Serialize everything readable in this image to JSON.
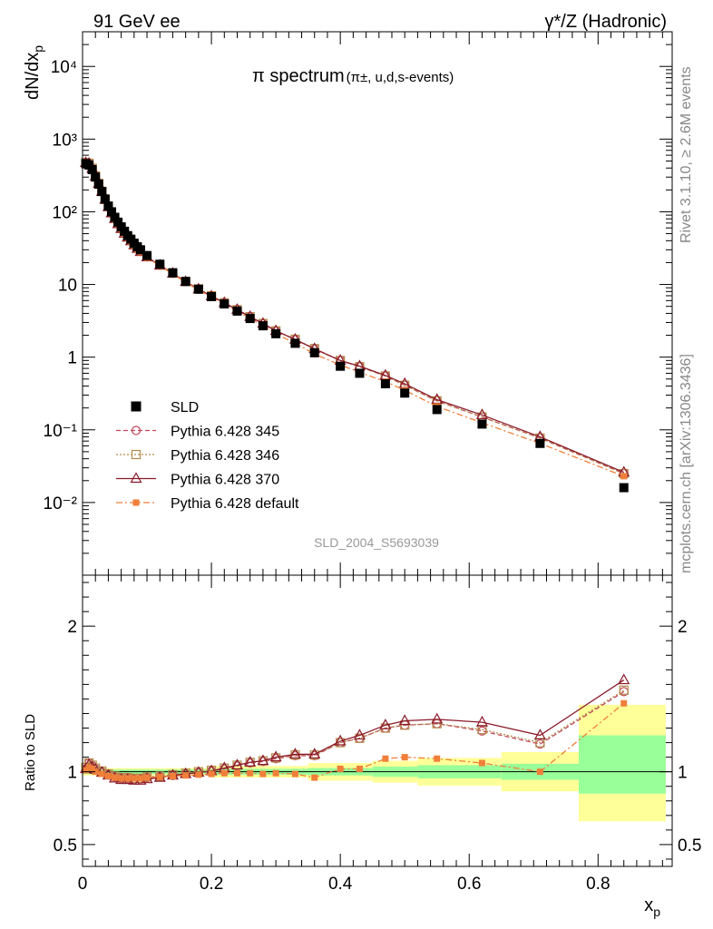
{
  "header": {
    "left": "91 GeV ee",
    "right": "γ*/Z (Hadronic)"
  },
  "side": {
    "rivet": "Rivet 3.1.10, ≥ 2.6M events",
    "mcplots": "mcplots.cern.ch [arXiv:1306.3436]"
  },
  "analysis_tag": "SLD_2004_S5693039",
  "chart_data": [
    {
      "type": "scatter",
      "title_main": "π spectrum",
      "title_sub": "(π±, u,d,s-events)",
      "xlabel": "",
      "ylabel": "dN/dx",
      "ylabel_sub": "p",
      "yscale": "log",
      "xlim": [
        0,
        0.915
      ],
      "ylim": [
        0.001,
        30000
      ],
      "x_ticks": [
        0,
        0.2,
        0.4,
        0.6,
        0.8
      ],
      "y_tick_labels": [
        "10⁻²",
        "10⁻¹",
        "1",
        "10",
        "10²",
        "10³",
        "10⁴"
      ],
      "y_tick_values": [
        0.01,
        0.1,
        1,
        10,
        100,
        1000,
        10000
      ],
      "legend_position": "bottom-left",
      "series": [
        {
          "name": "SLD",
          "color": "#000000",
          "marker": "square-filled",
          "x": [
            0.005,
            0.01,
            0.015,
            0.02,
            0.025,
            0.03,
            0.035,
            0.04,
            0.045,
            0.05,
            0.055,
            0.06,
            0.065,
            0.07,
            0.075,
            0.08,
            0.085,
            0.09,
            0.1,
            0.12,
            0.14,
            0.16,
            0.18,
            0.2,
            0.22,
            0.24,
            0.26,
            0.28,
            0.3,
            0.33,
            0.36,
            0.4,
            0.43,
            0.47,
            0.5,
            0.55,
            0.62,
            0.71,
            0.84
          ],
          "y": [
            460,
            440,
            380,
            300,
            240,
            190,
            150,
            120,
            100,
            84,
            72,
            62,
            54,
            47,
            42,
            37,
            33,
            30,
            25,
            19,
            14.5,
            11,
            8.6,
            6.8,
            5.4,
            4.3,
            3.4,
            2.7,
            2.1,
            1.55,
            1.15,
            0.75,
            0.6,
            0.43,
            0.32,
            0.19,
            0.12,
            0.065,
            0.016
          ]
        },
        {
          "name": "Pythia 6.428 345",
          "color": "#c0475a",
          "marker": "circle-open",
          "line": "dashed",
          "x": [
            0.005,
            0.01,
            0.015,
            0.02,
            0.025,
            0.03,
            0.035,
            0.04,
            0.045,
            0.05,
            0.055,
            0.06,
            0.065,
            0.07,
            0.075,
            0.08,
            0.085,
            0.09,
            0.1,
            0.12,
            0.14,
            0.16,
            0.18,
            0.2,
            0.22,
            0.24,
            0.26,
            0.28,
            0.3,
            0.33,
            0.36,
            0.4,
            0.43,
            0.47,
            0.5,
            0.55,
            0.62,
            0.71,
            0.84
          ],
          "y": [
            470,
            465,
            395,
            310,
            245,
            190,
            148,
            118,
            97,
            81,
            69,
            59,
            51,
            45,
            40,
            35,
            31.5,
            28.5,
            24,
            18.4,
            14.2,
            10.9,
            8.6,
            6.9,
            5.6,
            4.5,
            3.6,
            2.9,
            2.3,
            1.75,
            1.3,
            0.9,
            0.74,
            0.55,
            0.41,
            0.25,
            0.15,
            0.077,
            0.025
          ]
        },
        {
          "name": "Pythia 6.428 346",
          "color": "#b38a4a",
          "marker": "square-open",
          "line": "dotted",
          "x": [
            0.005,
            0.01,
            0.015,
            0.02,
            0.025,
            0.03,
            0.035,
            0.04,
            0.045,
            0.05,
            0.055,
            0.06,
            0.065,
            0.07,
            0.075,
            0.08,
            0.085,
            0.09,
            0.1,
            0.12,
            0.14,
            0.16,
            0.18,
            0.2,
            0.22,
            0.24,
            0.26,
            0.28,
            0.3,
            0.33,
            0.36,
            0.4,
            0.43,
            0.47,
            0.5,
            0.55,
            0.62,
            0.71,
            0.84
          ],
          "y": [
            475,
            465,
            397,
            312,
            246,
            191,
            148,
            118,
            97,
            81,
            69,
            59,
            51,
            45,
            40,
            35.2,
            31.6,
            28.6,
            24.1,
            18.5,
            14.3,
            11,
            8.7,
            7,
            5.6,
            4.5,
            3.6,
            2.9,
            2.3,
            1.76,
            1.31,
            0.9,
            0.74,
            0.55,
            0.41,
            0.25,
            0.15,
            0.077,
            0.025
          ]
        },
        {
          "name": "Pythia 6.428 370",
          "color": "#8b1a2a",
          "marker": "triangle-open",
          "line": "solid",
          "x": [
            0.005,
            0.01,
            0.015,
            0.02,
            0.025,
            0.03,
            0.035,
            0.04,
            0.045,
            0.05,
            0.055,
            0.06,
            0.065,
            0.07,
            0.075,
            0.08,
            0.085,
            0.09,
            0.1,
            0.12,
            0.14,
            0.16,
            0.18,
            0.2,
            0.22,
            0.24,
            0.26,
            0.28,
            0.3,
            0.33,
            0.36,
            0.4,
            0.43,
            0.47,
            0.5,
            0.55,
            0.62,
            0.71,
            0.84
          ],
          "y": [
            472,
            462,
            392,
            308,
            243,
            189,
            147,
            117,
            96,
            80,
            68,
            58.5,
            50.5,
            44.5,
            39.6,
            34.8,
            31.2,
            28.2,
            23.8,
            18.3,
            14.2,
            10.9,
            8.6,
            6.9,
            5.6,
            4.5,
            3.6,
            2.9,
            2.3,
            1.75,
            1.3,
            0.9,
            0.75,
            0.56,
            0.43,
            0.26,
            0.16,
            0.08,
            0.026
          ]
        },
        {
          "name": "Pythia 6.428 default",
          "color": "#f07f3a",
          "marker": "square-filled-small",
          "line": "dashdot",
          "x": [
            0.005,
            0.01,
            0.015,
            0.02,
            0.025,
            0.03,
            0.035,
            0.04,
            0.045,
            0.05,
            0.055,
            0.06,
            0.065,
            0.07,
            0.075,
            0.08,
            0.085,
            0.09,
            0.1,
            0.12,
            0.14,
            0.16,
            0.18,
            0.2,
            0.22,
            0.24,
            0.26,
            0.28,
            0.3,
            0.33,
            0.36,
            0.4,
            0.43,
            0.47,
            0.5,
            0.55,
            0.62,
            0.71,
            0.84
          ],
          "y": [
            465,
            455,
            385,
            300,
            238,
            186,
            145,
            116,
            95,
            79,
            67.5,
            58,
            50,
            44,
            39,
            34.5,
            30.8,
            27.8,
            23.4,
            18,
            14,
            10.7,
            8.4,
            6.7,
            5.3,
            4.3,
            3.4,
            2.7,
            2.08,
            1.56,
            1.1,
            0.78,
            0.62,
            0.46,
            0.35,
            0.21,
            0.125,
            0.065,
            0.023
          ]
        }
      ]
    },
    {
      "type": "scatter",
      "xlabel": "x",
      "xlabel_sub": "p",
      "ylabel": "Ratio to SLD",
      "xlim": [
        0,
        0.915
      ],
      "ylim": [
        0.35,
        2.35
      ],
      "x_ticks": [
        0,
        0.2,
        0.4,
        0.6,
        0.8
      ],
      "x_tick_labels": [
        "0",
        "0.2",
        "0.4",
        "0.6",
        "0.8"
      ],
      "y_ticks": [
        0.5,
        1,
        2
      ],
      "y_tick_labels": [
        "0.5",
        "1",
        "2"
      ],
      "reference_line": 1,
      "bands": {
        "edges": [
          0,
          0.2,
          0.35,
          0.45,
          0.52,
          0.65,
          0.77,
          0.905
        ],
        "inner_low": [
          0.985,
          0.98,
          0.975,
          0.965,
          0.955,
          0.945,
          0.85
        ],
        "inner_high": [
          1.015,
          1.02,
          1.025,
          1.035,
          1.045,
          1.055,
          1.25
        ],
        "outer_low": [
          0.975,
          0.96,
          0.94,
          0.925,
          0.905,
          0.865,
          0.66
        ],
        "outer_high": [
          1.025,
          1.04,
          1.06,
          1.075,
          1.095,
          1.135,
          1.46
        ],
        "inner_color": "#99ff99",
        "outer_color": "#ffff99"
      },
      "series": [
        {
          "name": "Pythia 6.428 345",
          "color": "#c0475a",
          "x": [
            0.005,
            0.01,
            0.015,
            0.02,
            0.03,
            0.04,
            0.05,
            0.06,
            0.07,
            0.08,
            0.09,
            0.1,
            0.12,
            0.14,
            0.16,
            0.18,
            0.2,
            0.22,
            0.24,
            0.26,
            0.28,
            0.3,
            0.33,
            0.36,
            0.4,
            0.43,
            0.47,
            0.5,
            0.55,
            0.62,
            0.71,
            0.84
          ],
          "y": [
            1.02,
            1.06,
            1.04,
            1.02,
            1.0,
            0.98,
            0.965,
            0.955,
            0.955,
            0.95,
            0.95,
            0.96,
            0.965,
            0.975,
            0.985,
            0.995,
            1.005,
            1.02,
            1.04,
            1.06,
            1.07,
            1.09,
            1.11,
            1.11,
            1.2,
            1.23,
            1.3,
            1.32,
            1.33,
            1.28,
            1.19,
            1.55
          ]
        },
        {
          "name": "Pythia 6.428 346",
          "color": "#b38a4a",
          "x": [
            0.005,
            0.01,
            0.015,
            0.02,
            0.03,
            0.04,
            0.05,
            0.06,
            0.07,
            0.08,
            0.09,
            0.1,
            0.12,
            0.14,
            0.16,
            0.18,
            0.2,
            0.22,
            0.24,
            0.26,
            0.28,
            0.3,
            0.33,
            0.36,
            0.4,
            0.43,
            0.47,
            0.5,
            0.55,
            0.62,
            0.71,
            0.84
          ],
          "y": [
            1.03,
            1.06,
            1.045,
            1.025,
            1.005,
            0.985,
            0.97,
            0.96,
            0.96,
            0.955,
            0.955,
            0.965,
            0.97,
            0.98,
            0.99,
            1.0,
            1.01,
            1.025,
            1.045,
            1.065,
            1.075,
            1.095,
            1.115,
            1.115,
            1.2,
            1.23,
            1.3,
            1.32,
            1.33,
            1.29,
            1.2,
            1.56
          ]
        },
        {
          "name": "Pythia 6.428 370",
          "color": "#8b1a2a",
          "x": [
            0.005,
            0.01,
            0.015,
            0.02,
            0.03,
            0.04,
            0.05,
            0.06,
            0.07,
            0.08,
            0.09,
            0.1,
            0.12,
            0.14,
            0.16,
            0.18,
            0.2,
            0.22,
            0.24,
            0.26,
            0.28,
            0.3,
            0.33,
            0.36,
            0.4,
            0.43,
            0.47,
            0.5,
            0.55,
            0.62,
            0.71,
            0.84
          ],
          "y": [
            1.02,
            1.05,
            1.03,
            1.015,
            0.995,
            0.975,
            0.955,
            0.945,
            0.945,
            0.94,
            0.94,
            0.95,
            0.96,
            0.975,
            0.985,
            0.995,
            1.005,
            1.025,
            1.045,
            1.065,
            1.075,
            1.1,
            1.12,
            1.12,
            1.21,
            1.25,
            1.32,
            1.35,
            1.36,
            1.34,
            1.25,
            1.63
          ]
        },
        {
          "name": "Pythia 6.428 default",
          "color": "#f07f3a",
          "x": [
            0.005,
            0.01,
            0.015,
            0.02,
            0.03,
            0.04,
            0.05,
            0.06,
            0.07,
            0.08,
            0.09,
            0.1,
            0.12,
            0.14,
            0.16,
            0.18,
            0.2,
            0.22,
            0.24,
            0.26,
            0.28,
            0.3,
            0.33,
            0.36,
            0.4,
            0.43,
            0.47,
            0.5,
            0.55,
            0.62,
            0.71,
            0.84
          ],
          "y": [
            1.01,
            1.03,
            1.02,
            1.0,
            0.985,
            0.97,
            0.96,
            0.955,
            0.955,
            0.955,
            0.955,
            0.96,
            0.965,
            0.97,
            0.975,
            0.98,
            0.985,
            0.99,
            0.99,
            0.99,
            0.985,
            0.99,
            0.985,
            0.96,
            1.02,
            1.02,
            1.09,
            1.1,
            1.09,
            1.06,
            1.0,
            1.47
          ]
        }
      ]
    }
  ]
}
